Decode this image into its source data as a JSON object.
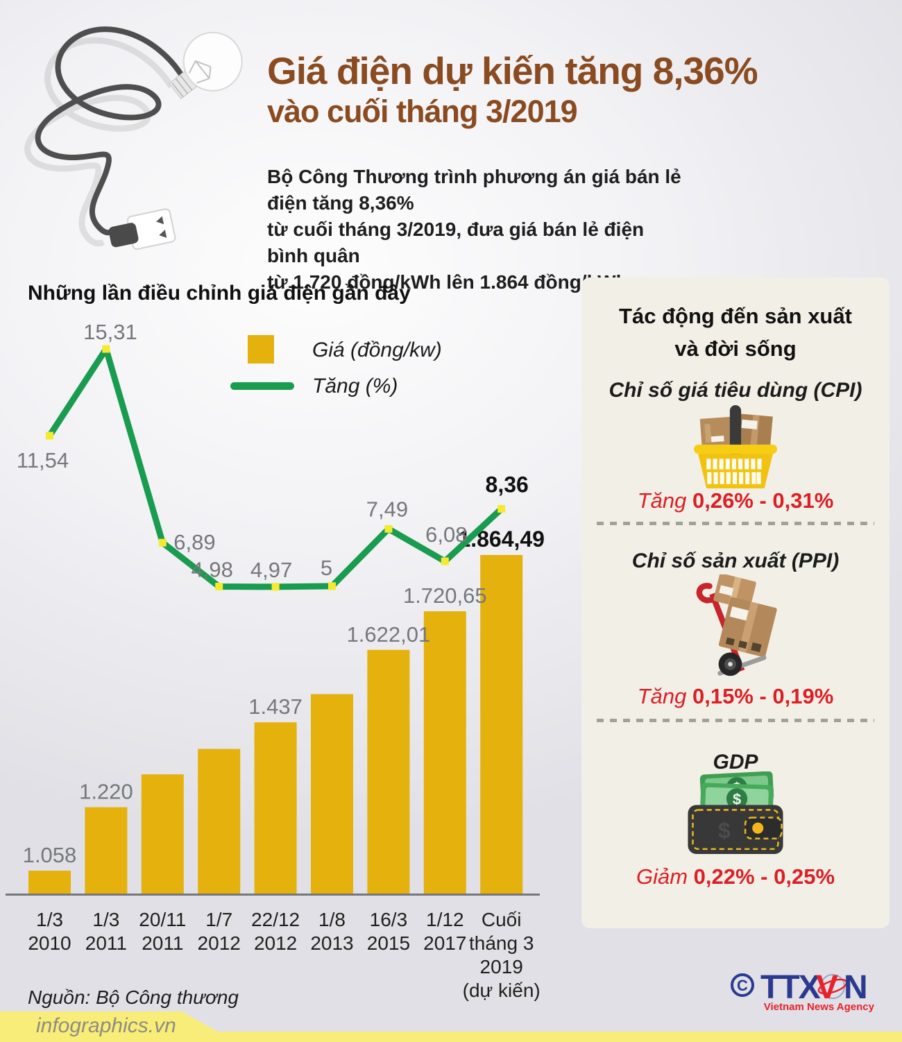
{
  "header": {
    "title_line1": "Giá điện dự kiến tăng 8,36%",
    "title_line2": "vào cuối tháng 3/2019",
    "intro_lines": [
      "Bộ Công Thương trình phương án giá bán lẻ điện tăng 8,36%",
      "từ cuối tháng 3/2019, đưa giá bán lẻ điện bình quân",
      "từ 1.720 đồng/kWh lên 1.864 đồng/kWh."
    ]
  },
  "chart_data": {
    "type": "bar+line combo",
    "title": "Những lần điều chỉnh giá điện gần đây",
    "legend": [
      {
        "label": "Giá (đồng/kw)",
        "type": "bar",
        "color": "#e4b10d"
      },
      {
        "label": "Tăng (%)",
        "type": "line",
        "color": "#199c4f"
      }
    ],
    "categories": [
      [
        "1/3",
        "2010"
      ],
      [
        "1/3",
        "2011"
      ],
      [
        "20/11",
        "2011"
      ],
      [
        "1/7",
        "2012"
      ],
      [
        "22/12",
        "2012"
      ],
      [
        "1/8",
        "2013"
      ],
      [
        "16/3",
        "2015"
      ],
      [
        "1/12",
        "2017"
      ],
      [
        "Cuối",
        "tháng 3",
        "2019",
        "(dự kiến)"
      ]
    ],
    "series": [
      {
        "name": "Giá (đồng/kw)",
        "values": [
          1058,
          1220,
          1304,
          1369,
          1437,
          1509,
          1622.01,
          1720.65,
          1864.49
        ],
        "labels": [
          "1.058",
          "1.220",
          "",
          "",
          "1.437",
          "",
          "1.622,01",
          "1.720,65",
          "1.864,49"
        ]
      },
      {
        "name": "Tăng (%)",
        "values": [
          11.54,
          15.31,
          6.89,
          4.98,
          4.97,
          5,
          7.49,
          6.08,
          8.36
        ],
        "labels": [
          "11,54",
          "15,31",
          "6,89",
          "4,98",
          "4,97",
          "5",
          "7,49",
          "6,08",
          "8,36"
        ]
      }
    ],
    "colors": {
      "bar": "#e4b10d",
      "line": "#199c4f",
      "marker": "#f6ea2f",
      "axis": "#75777b"
    },
    "grid": false,
    "legend_position": "top-right of plot"
  },
  "impact_panel": {
    "title_line1": "Tác động đến sản xuất",
    "title_line2": "và đời sống",
    "items": [
      {
        "label": "Chỉ số giá tiêu dùng (CPI)",
        "icon": "shopping-basket-icon",
        "direction": "Tăng",
        "range": "0,26% - 0,31%"
      },
      {
        "label": "Chỉ số sản xuất (PPI)",
        "icon": "hand-truck-icon",
        "direction": "Tăng",
        "range": "0,15% - 0,19%"
      },
      {
        "label": "GDP",
        "icon": "wallet-icon",
        "direction": "Giảm",
        "range": "0,22% - 0,25%"
      }
    ]
  },
  "footer": {
    "source": "Nguồn: Bộ Công thương",
    "site": "infographics.vn",
    "copyright": "©",
    "logo": "TTXVN",
    "logo_sub": "Vietnam News Agency"
  }
}
